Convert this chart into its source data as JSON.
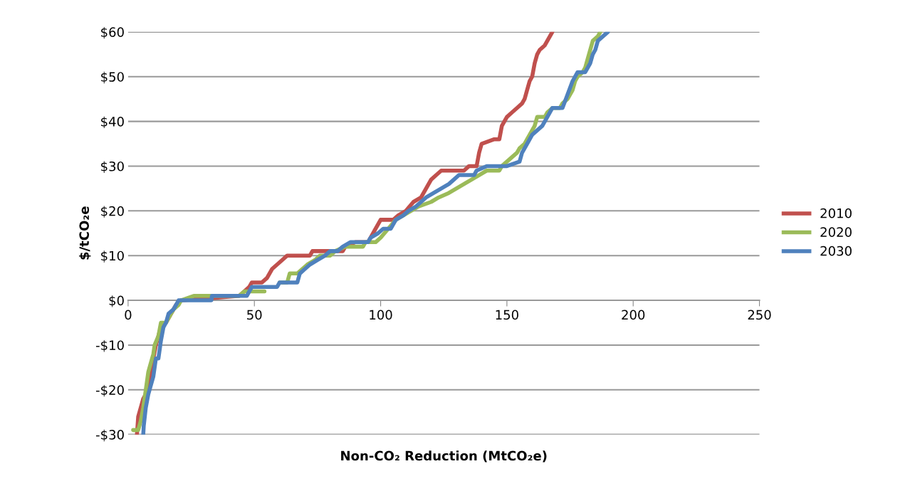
{
  "chart_data": {
    "type": "line",
    "xlabel": "Non-CO₂ Reduction (MtCO₂e)",
    "ylabel": "$/tCO₂e",
    "xlim": [
      0,
      250
    ],
    "xticks": [
      0,
      50,
      100,
      150,
      200,
      250
    ],
    "ylim": [
      -30,
      60
    ],
    "yticks": [
      {
        "value": -30,
        "label": "-$30"
      },
      {
        "value": -20,
        "label": "-$20"
      },
      {
        "value": -10,
        "label": "-$10"
      },
      {
        "value": 0,
        "label": "$0"
      },
      {
        "value": 10,
        "label": "$10"
      },
      {
        "value": 20,
        "label": "$20"
      },
      {
        "value": 30,
        "label": "$30"
      },
      {
        "value": 40,
        "label": "$40"
      },
      {
        "value": 50,
        "label": "$50"
      },
      {
        "value": 60,
        "label": "$60"
      }
    ],
    "grid": "y",
    "legend": "right",
    "marker": "none",
    "line_style": "solid",
    "series": [
      {
        "name": "2010",
        "color": "#c0504d",
        "x": [
          3.5,
          4,
          5,
          6,
          8,
          9,
          10,
          11,
          12,
          13,
          15,
          17,
          19,
          21,
          33,
          44,
          46,
          48,
          49,
          53,
          55,
          57,
          59,
          61,
          63,
          72,
          73,
          85,
          86,
          90,
          95,
          96,
          98,
          100,
          105,
          107,
          110,
          113,
          116,
          118,
          120,
          122,
          124,
          133,
          135,
          138,
          139,
          140,
          145,
          147,
          148,
          150,
          152,
          154,
          156,
          157,
          158,
          159,
          160,
          161,
          162,
          163,
          165,
          167,
          168
        ],
        "values": [
          -30,
          -26,
          -24,
          -22,
          -20,
          -17,
          -13,
          -10,
          -8,
          -6,
          -5,
          -3,
          -1,
          0,
          0.5,
          1,
          2,
          3,
          4,
          4,
          5,
          7,
          8,
          9,
          10,
          10,
          11,
          11,
          12,
          13,
          13,
          14,
          16,
          18,
          18,
          19,
          20,
          22,
          23,
          25,
          27,
          28,
          29,
          29,
          30,
          30,
          33,
          35,
          36,
          36,
          39,
          41,
          42,
          43,
          44,
          45,
          47,
          49,
          50,
          53,
          55,
          56,
          57,
          59,
          60
        ]
      },
      {
        "name": "2020",
        "color": "#9bbb59",
        "x": [
          2,
          4,
          5,
          6,
          7,
          8,
          9,
          10,
          10.5,
          12,
          13,
          15,
          17,
          18,
          20,
          21,
          26,
          44,
          46,
          54,
          55,
          59,
          60,
          63,
          64,
          67,
          69,
          71,
          74,
          76,
          80,
          82,
          86,
          93,
          94,
          98,
          100,
          103,
          106,
          109,
          112,
          115,
          120,
          123,
          127,
          130,
          133,
          136,
          139,
          142,
          147,
          148,
          150,
          152,
          154,
          155,
          157,
          158,
          159,
          160,
          161,
          162,
          165,
          166,
          168,
          171,
          172,
          174,
          176,
          177,
          178,
          180,
          181,
          182,
          183,
          184,
          186,
          187
        ],
        "values": [
          -29,
          -29,
          -27,
          -24,
          -20,
          -16,
          -14,
          -12,
          -10,
          -8,
          -5,
          -5,
          -3,
          -2,
          -1,
          0,
          1,
          1,
          2,
          2,
          null,
          null,
          4,
          4,
          6,
          6,
          7,
          8,
          9,
          10,
          10,
          11,
          12,
          12,
          13,
          13,
          14,
          16,
          18,
          19,
          20,
          21,
          22,
          23,
          24,
          25,
          26,
          27,
          28,
          29,
          29,
          30,
          31,
          32,
          33,
          34,
          35,
          36,
          37,
          38,
          39,
          41,
          41,
          42,
          43,
          43,
          44,
          45,
          47,
          49,
          50,
          51,
          52,
          54,
          56,
          58,
          59,
          60
        ]
      },
      {
        "name": "2030",
        "color": "#4f81bd",
        "x": [
          6,
          6.2,
          7,
          8,
          9,
          10,
          11,
          12,
          13,
          14,
          15,
          16,
          18,
          19,
          20,
          33,
          33.2,
          47,
          48,
          49,
          59,
          60,
          67,
          68,
          70,
          72,
          75,
          78,
          80,
          83,
          85,
          88,
          95,
          96,
          99,
          101,
          104,
          106,
          109,
          111,
          114,
          116,
          118,
          121,
          124,
          127,
          129,
          131,
          137,
          138,
          142,
          150,
          155,
          156,
          158,
          160,
          162,
          164,
          165,
          166,
          168,
          172,
          174,
          176,
          178,
          181,
          183,
          184,
          185,
          186,
          188,
          190
        ],
        "values": [
          -30,
          -28,
          -24,
          -21,
          -19,
          -17,
          -13,
          -13,
          -9,
          -6,
          -5,
          -3,
          -2,
          -1,
          0,
          0,
          1,
          1,
          2,
          3,
          3,
          4,
          4,
          6,
          7,
          8,
          9,
          10,
          11,
          11,
          12,
          13,
          13,
          14,
          15,
          16,
          16,
          18,
          19,
          20,
          21,
          22,
          23,
          24,
          25,
          26,
          27,
          28,
          28,
          29,
          30,
          30,
          31,
          33,
          35,
          37,
          38,
          39,
          40,
          41,
          43,
          43,
          46,
          49,
          51,
          51,
          53,
          55,
          56,
          58,
          59,
          60
        ]
      }
    ]
  }
}
